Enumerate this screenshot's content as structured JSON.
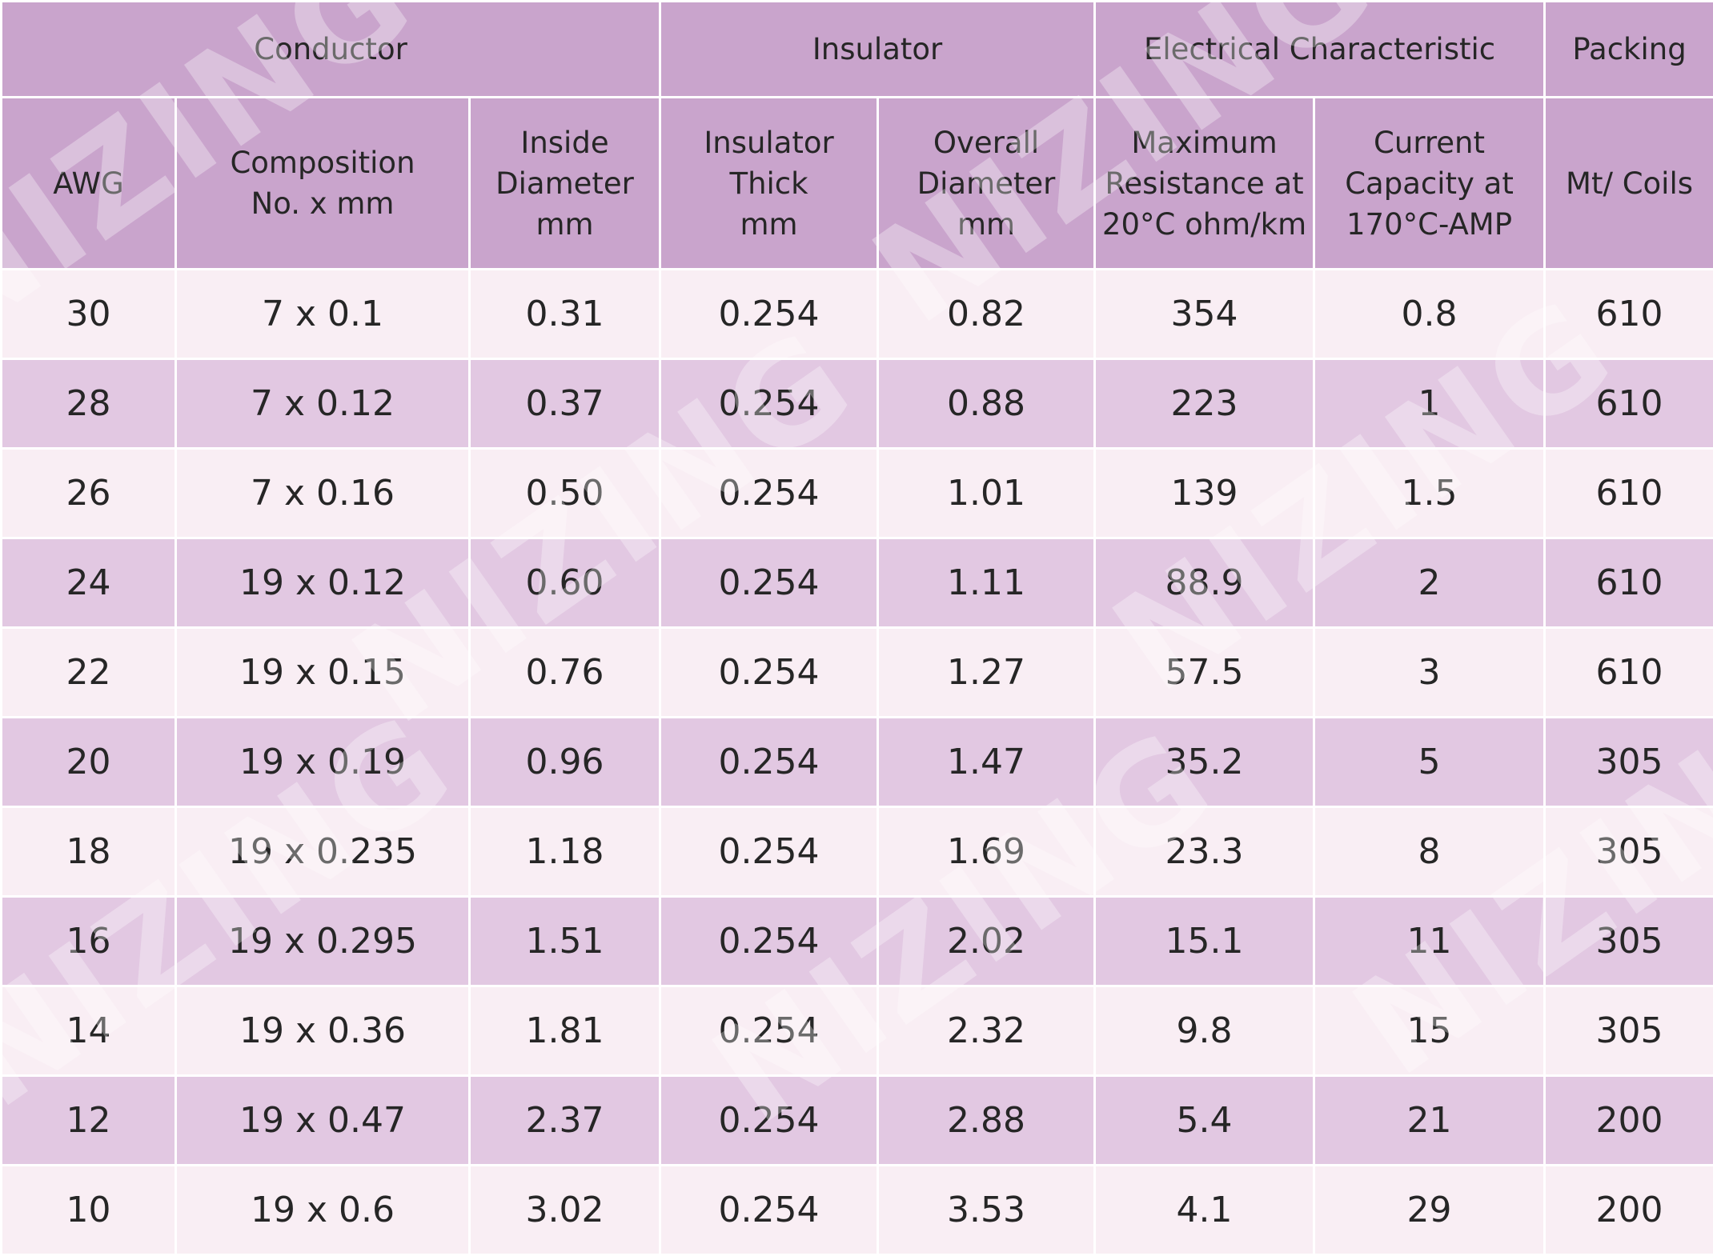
{
  "groups": {
    "conductor": "Conductor",
    "insulator": "Insulator",
    "electrical": "Electrical Characteristic",
    "packing": "Packing"
  },
  "columns": {
    "awg": "AWG",
    "composition": "Composition\nNo. x mm",
    "inside_diameter": "Inside\nDiameter\nmm",
    "insulator_thick": "Insulator Thick\nmm",
    "overall_diameter": "Overall\nDiameter\nmm",
    "max_resistance": "Maximum\nResistance at\n20°C ohm/km",
    "current_capacity": "Current\nCapacity at\n170°C-AMP",
    "mt_coils": "Mt/ Coils"
  },
  "rows": [
    [
      "30",
      "7 x 0.1",
      "0.31",
      "0.254",
      "0.82",
      "354",
      "0.8",
      "610"
    ],
    [
      "28",
      "7 x 0.12",
      "0.37",
      "0.254",
      "0.88",
      "223",
      "1",
      "610"
    ],
    [
      "26",
      "7 x 0.16",
      "0.50",
      "0.254",
      "1.01",
      "139",
      "1.5",
      "610"
    ],
    [
      "24",
      "19 x 0.12",
      "0.60",
      "0.254",
      "1.11",
      "88.9",
      "2",
      "610"
    ],
    [
      "22",
      "19 x 0.15",
      "0.76",
      "0.254",
      "1.27",
      "57.5",
      "3",
      "610"
    ],
    [
      "20",
      "19 x 0.19",
      "0.96",
      "0.254",
      "1.47",
      "35.2",
      "5",
      "305"
    ],
    [
      "18",
      "19 x 0.235",
      "1.18",
      "0.254",
      "1.69",
      "23.3",
      "8",
      "305"
    ],
    [
      "16",
      "19 x 0.295",
      "1.51",
      "0.254",
      "2.02",
      "15.1",
      "11",
      "305"
    ],
    [
      "14",
      "19 x 0.36",
      "1.81",
      "0.254",
      "2.32",
      "9.8",
      "15",
      "305"
    ],
    [
      "12",
      "19 x 0.47",
      "2.37",
      "0.254",
      "2.88",
      "5.4",
      "21",
      "200"
    ],
    [
      "10",
      "19 x 0.6",
      "3.02",
      "0.254",
      "3.53",
      "4.1",
      "29",
      "200"
    ]
  ],
  "watermark": "NIZING",
  "colors": {
    "header_bg": "#c9a4cc",
    "row_light": "#f9eef4",
    "row_dark": "#e2c8e2",
    "border": "#ffffff"
  }
}
